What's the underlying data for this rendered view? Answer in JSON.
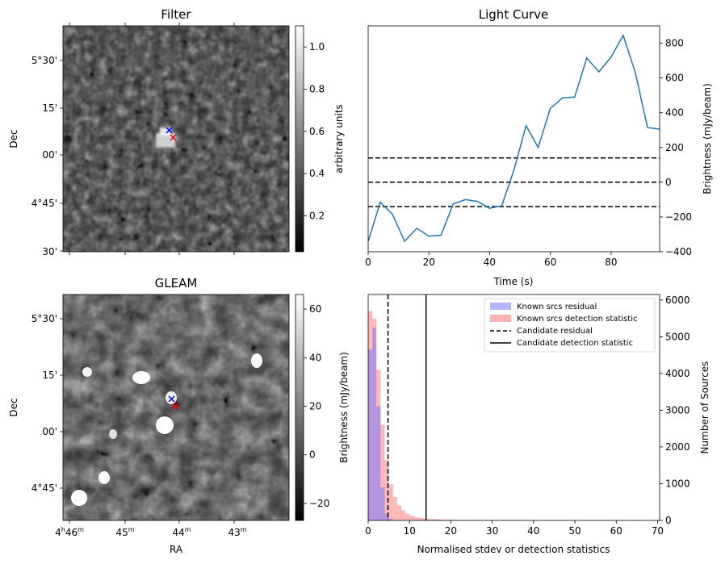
{
  "figure": {
    "panels": [
      "Filter",
      "Light Curve",
      "GLEAM",
      "Histogram"
    ]
  },
  "chart_data": [
    {
      "type": "heatmap",
      "title": "Filter",
      "xlabel": "",
      "ylabel": "Dec",
      "ytick_labels": [
        "5°30'",
        "15'",
        "00'",
        "4°45'",
        "30'"
      ],
      "colorbar": {
        "label": "arbitrary units",
        "range": [
          0.03,
          1.1
        ],
        "tick_values": [
          0.2,
          0.4,
          0.6,
          0.8,
          1.0
        ],
        "tick_labels": [
          "0.2",
          "0.4",
          "0.6",
          "0.8",
          "1.0"
        ]
      },
      "markers": [
        {
          "symbol": "x",
          "color": "#0000ff",
          "label": "blue cross"
        },
        {
          "symbol": "x",
          "color": "#ff0000",
          "label": "red cross"
        }
      ]
    },
    {
      "type": "line",
      "title": "Light Curve",
      "xlabel": "Time (s)",
      "ylabel": "Brightness (mJy/beam)",
      "xlim": [
        0,
        96
      ],
      "ylim": [
        -400,
        900
      ],
      "xtick_values": [
        0,
        20,
        40,
        60,
        80
      ],
      "xtick_labels": [
        "0",
        "20",
        "40",
        "60",
        "80"
      ],
      "ytick_values": [
        -400,
        -200,
        0,
        200,
        400,
        600,
        800
      ],
      "ytick_labels": [
        "−400",
        "−200",
        "0",
        "200",
        "400",
        "600",
        "800"
      ],
      "series": [
        {
          "name": "light curve",
          "color": "#1f77b4",
          "x": [
            0,
            4,
            8,
            12,
            16,
            20,
            24,
            28,
            32,
            36,
            40,
            44,
            48,
            52,
            56,
            60,
            64,
            68,
            72,
            76,
            80,
            84,
            88,
            92,
            96
          ],
          "y": [
            -340,
            -115,
            -185,
            -340,
            -265,
            -310,
            -305,
            -125,
            -100,
            -110,
            -150,
            -135,
            70,
            325,
            200,
            425,
            485,
            490,
            715,
            635,
            720,
            845,
            630,
            315,
            305
          ]
        }
      ],
      "hlines": [
        {
          "y": 140,
          "style": "dashed",
          "color": "#000000"
        },
        {
          "y": 0,
          "style": "dashed",
          "color": "#000000"
        },
        {
          "y": -140,
          "style": "dashed",
          "color": "#000000"
        }
      ]
    },
    {
      "type": "heatmap",
      "title": "GLEAM",
      "xlabel": "RA",
      "ylabel": "Dec",
      "ytick_labels": [
        "5°30'",
        "15'",
        "00'",
        "4°45'"
      ],
      "xtick_labels": [
        {
          "main": "4",
          "sup1": "h",
          "main2": "46",
          "sup2": "m"
        },
        {
          "main": "45",
          "sup1": "m"
        },
        {
          "main": "44",
          "sup1": "m"
        },
        {
          "main": "43",
          "sup1": "m"
        }
      ],
      "colorbar": {
        "label": "Brightness (mJy/beam)",
        "range": [
          -27,
          66
        ],
        "tick_values": [
          -20,
          0,
          20,
          40,
          60
        ],
        "tick_labels": [
          "−20",
          "0",
          "20",
          "40",
          "60"
        ]
      },
      "markers": [
        {
          "symbol": "x",
          "color": "#0000ff",
          "label": "blue cross"
        },
        {
          "symbol": "x",
          "color": "#ff0000",
          "label": "red cross"
        }
      ]
    },
    {
      "type": "bar",
      "title": "",
      "xlabel": "Normalised stdev or detection statistics",
      "ylabel": "Number of Sources",
      "xlim": [
        0,
        70.5
      ],
      "ylim": [
        0,
        6150
      ],
      "xtick_values": [
        0,
        10,
        20,
        30,
        40,
        50,
        60,
        70
      ],
      "xtick_labels": [
        "0",
        "10",
        "20",
        "30",
        "40",
        "50",
        "60",
        "70"
      ],
      "ytick_values": [
        0,
        1000,
        2000,
        3000,
        4000,
        5000,
        6000
      ],
      "ytick_labels": [
        "0",
        "1000",
        "2000",
        "3000",
        "4000",
        "5000",
        "6000"
      ],
      "bin_width": 1,
      "series": [
        {
          "name": "Known srcs residual",
          "color": "#7777ff",
          "counts": [
            4650,
            5250,
            3100,
            900,
            180,
            45,
            10
          ]
        },
        {
          "name": "Known srcs detection statistic",
          "color": "#ff8888",
          "counts": [
            5700,
            5500,
            4100,
            2600,
            1650,
            980,
            640,
            410,
            270,
            180,
            130,
            95,
            70,
            55,
            45,
            35,
            30,
            25,
            22,
            20,
            18,
            16,
            14,
            12,
            10,
            9,
            8,
            7,
            7,
            6,
            6,
            5,
            5,
            5,
            4,
            4,
            4,
            3,
            3,
            3,
            3,
            3,
            2,
            2,
            2,
            2,
            2,
            2,
            2,
            2,
            2,
            2,
            2,
            2,
            2,
            1,
            1,
            1,
            1,
            1,
            1,
            1,
            1,
            1,
            1,
            1,
            1,
            1,
            1,
            1
          ]
        }
      ],
      "vlines": [
        {
          "name": "Candidate residual",
          "x": 4.8,
          "style": "dashed",
          "color": "#000000"
        },
        {
          "name": "Candidate detection statistic",
          "x": 14.0,
          "style": "solid",
          "color": "#000000"
        }
      ],
      "legend": {
        "position": "top-right",
        "entries": [
          "Known srcs residual",
          "Known srcs detection statistic",
          "Candidate residual",
          "Candidate detection statistic"
        ]
      }
    }
  ]
}
